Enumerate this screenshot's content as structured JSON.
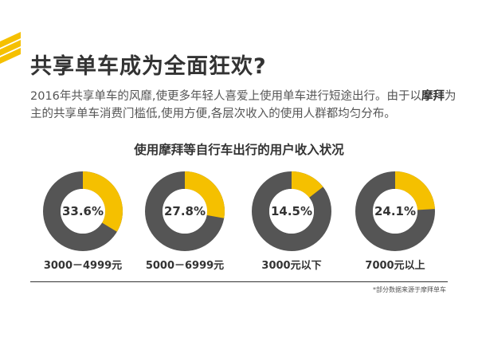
{
  "title": "共享单车成为全面狂欢?",
  "intro": {
    "line1": "2016年共享单车的风靡,使更多年轻人喜爱上使用单车进行短途出行。由于以",
    "bold_word": "摩拜",
    "line2_rest": "为主的共享单车消费门槛低,使用方便,各层次收入的使用人群都均匀分布。"
  },
  "source_note": "*部分数据来源于摩拜单车",
  "colors": {
    "accent": "#F5C000",
    "dark": "#555555",
    "text": "#333333"
  },
  "chart_data": {
    "type": "pie",
    "title": "使用摩拜等自行车出行的用户收入状况",
    "categories": [
      "3000－4999元",
      "5000－6999元",
      "3000元以下",
      "7000元以上"
    ],
    "values": [
      33.6,
      27.8,
      14.5,
      24.1
    ],
    "value_labels": [
      "33.6%",
      "27.8%",
      "14.5%",
      "24.1%"
    ],
    "unit": "%"
  }
}
